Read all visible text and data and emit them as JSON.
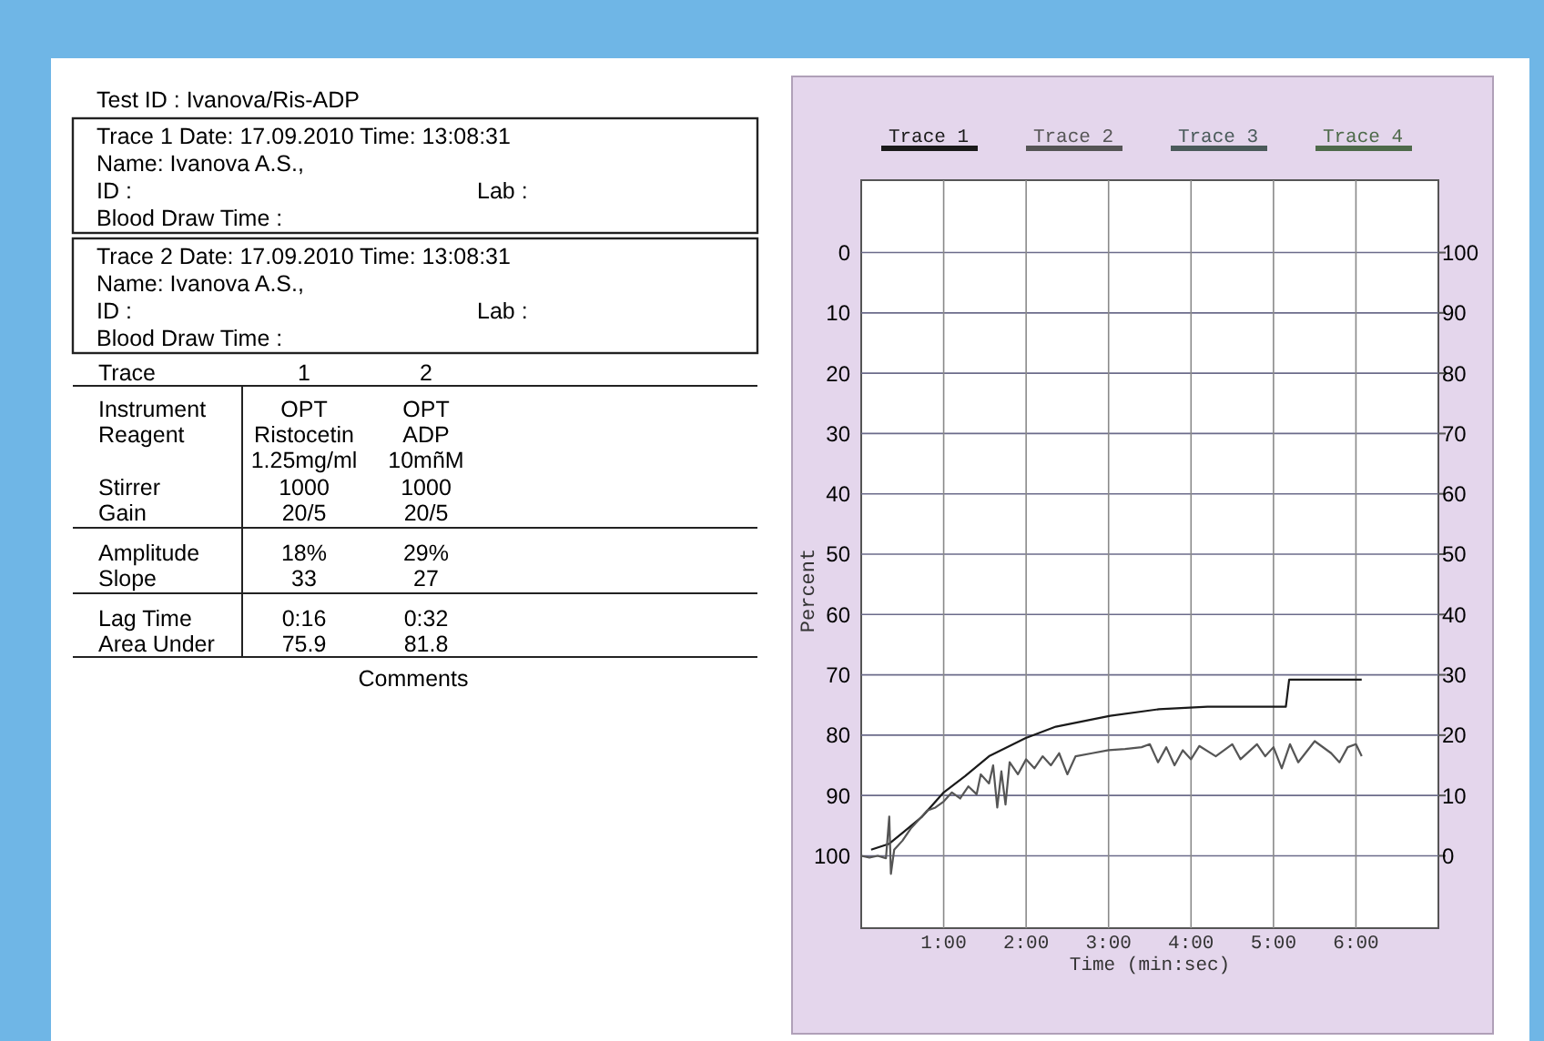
{
  "chart_data": [
    {
      "type": "other",
      "title": "Test ID : Ivanova/Ris-ADP",
      "annotations": [
        "Trace 1 Date: 17.09.2010 Time: 13:08:31",
        "Name: Ivanova A.S.,",
        "ID :",
        "Lab :",
        "Blood Draw Time :",
        "Trace 2 Date: 17.09.2010 Time: 13:08:31",
        "Name: Ivanova A.S.,",
        "ID :",
        "Lab :",
        "Blood Draw Time :",
        "Trace",
        "1",
        "2",
        "Instrument",
        "OPT",
        "OPT",
        "Reagent",
        "Ristocetin",
        "ADP",
        "1.25mg/ml",
        "10mñM",
        "Stirrer",
        "1000",
        "1000",
        "Gain",
        "20/5",
        "20/5",
        "Amplitude",
        "18%",
        "29%",
        "Slope",
        "33",
        "27",
        "Lag Time",
        "0:16",
        "0:32",
        "Area Under",
        "75.9",
        "81.8",
        "Comments"
      ]
    },
    {
      "type": "line",
      "xlabel": "Time (min:sec)",
      "ylabel": "Percent",
      "xlim": [
        0,
        7
      ],
      "xticks": [
        {
          "value": 1,
          "label": "1:00"
        },
        {
          "value": 2,
          "label": "2:00"
        },
        {
          "value": 3,
          "label": "3:00"
        },
        {
          "value": 4,
          "label": "4:00"
        },
        {
          "value": 5,
          "label": "5:00"
        },
        {
          "value": 6,
          "label": "6:00"
        }
      ],
      "ylim": [
        112,
        -12
      ],
      "yticks": [
        0,
        10,
        20,
        30,
        40,
        50,
        60,
        70,
        80,
        90,
        100
      ],
      "y2lim": [
        -12,
        112
      ],
      "y2ticks": [
        0,
        10,
        20,
        30,
        40,
        50,
        60,
        70,
        80,
        90,
        100
      ],
      "grid": true,
      "legend": "top",
      "marker": "none",
      "line_style": "solid",
      "series": [
        {
          "name": "Trace 1",
          "color": "#1a1a1a",
          "x": [
            0.12,
            0.34,
            0.52,
            0.74,
            1.0,
            1.26,
            1.55,
            1.99,
            2.36,
            3.02,
            3.61,
            4.2,
            5.15,
            5.19,
            6.07
          ],
          "values": [
            99,
            98,
            96,
            93.5,
            89.5,
            86.8,
            83.5,
            80.5,
            78.6,
            76.8,
            75.7,
            75.3,
            75.3,
            70.8,
            70.8
          ]
        },
        {
          "name": "Trace 2",
          "color": "#555555",
          "x": [
            0,
            0.1,
            0.2,
            0.3,
            0.34,
            0.36,
            0.4,
            0.5,
            0.6,
            0.7,
            0.8,
            0.9,
            1.0,
            1.1,
            1.2,
            1.3,
            1.4,
            1.45,
            1.55,
            1.6,
            1.65,
            1.7,
            1.75,
            1.8,
            1.9,
            2.0,
            2.1,
            2.2,
            2.3,
            2.4,
            2.5,
            2.6,
            2.8,
            3.0,
            3.2,
            3.4,
            3.5,
            3.6,
            3.7,
            3.8,
            3.9,
            4.0,
            4.1,
            4.3,
            4.5,
            4.6,
            4.8,
            4.9,
            5.0,
            5.1,
            5.2,
            5.3,
            5.5,
            5.7,
            5.8,
            5.9,
            6.0,
            6.07
          ],
          "values": [
            100,
            100.3,
            100,
            100.4,
            93.5,
            103,
            99,
            97.5,
            95.5,
            94,
            92.5,
            92,
            91,
            89.5,
            90.5,
            88.5,
            89.8,
            86.5,
            88,
            85,
            92,
            86,
            91.5,
            84.5,
            86.5,
            84,
            85.5,
            83.5,
            85,
            83,
            86.5,
            83.5,
            83,
            82.5,
            82.3,
            82,
            81.5,
            84.5,
            82,
            85,
            82.5,
            84,
            81.8,
            83.5,
            81.5,
            84,
            81.5,
            83.5,
            82,
            85.5,
            81.5,
            84.5,
            81,
            83,
            84.5,
            82,
            81.5,
            83.5
          ]
        },
        {
          "name": "Trace 3",
          "color": "#4a5a5a"
        },
        {
          "name": "Trace 4",
          "color": "#4e6a4a"
        }
      ]
    }
  ]
}
